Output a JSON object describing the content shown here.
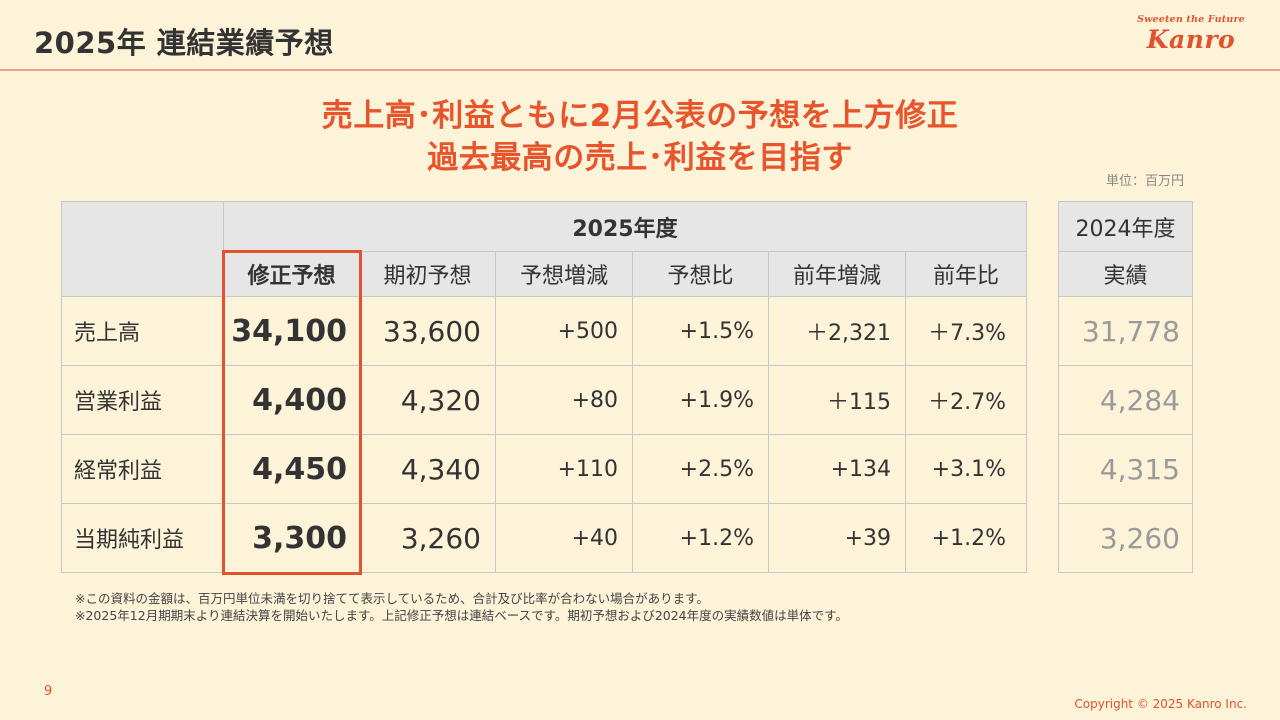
{
  "header": {
    "title": "2025年 連結業績予想"
  },
  "logo": {
    "tagline": "Sweeten the Future",
    "name": "Kanro"
  },
  "headline": {
    "line1": "売上高･利益ともに2月公表の予想を上方修正",
    "line2": "過去最高の売上･利益を目指す"
  },
  "unit_label": "単位：百万円",
  "table": {
    "year_header": "2025年度",
    "columns": [
      "修正予想",
      "期初予想",
      "予想増減",
      "予想比",
      "前年増減",
      "前年比"
    ],
    "prev_year_header": "2024年度",
    "prev_column": "実績",
    "rows": [
      {
        "label": "売上高",
        "revised": "34,100",
        "initial": "33,600",
        "diff": "+500",
        "ratio": "+1.5%",
        "yoy_diff": "＋2,321",
        "yoy_ratio": "＋7.3%",
        "prev_actual": "31,778"
      },
      {
        "label": "営業利益",
        "revised": "4,400",
        "initial": "4,320",
        "diff": "+80",
        "ratio": "+1.9%",
        "yoy_diff": "＋115",
        "yoy_ratio": "＋2.7%",
        "prev_actual": "4,284"
      },
      {
        "label": "経常利益",
        "revised": "4,450",
        "initial": "4,340",
        "diff": "+110",
        "ratio": "+2.5%",
        "yoy_diff": "+134",
        "yoy_ratio": "+3.1%",
        "prev_actual": "4,315"
      },
      {
        "label": "当期純利益",
        "revised": "3,300",
        "initial": "3,260",
        "diff": "+40",
        "ratio": "+1.2%",
        "yoy_diff": "+39",
        "yoy_ratio": "+1.2%",
        "prev_actual": "3,260"
      }
    ]
  },
  "notes": [
    "※この資料の金額は、百万円単位未満を切り捨てて表示しているため、合計及び比率が合わない場合があります。",
    "※2025年12月期期末より連結決算を開始いたします。上記修正予想は連結ベースです。期初予想および2024年度の実績数値は単体です。"
  ],
  "page_number": "9",
  "copyright": "Copyright © 2025  Kanro Inc.",
  "colors": {
    "accent": "#e2522e",
    "background": "#fdf3d9",
    "header_cell": "#e6e6e6"
  }
}
